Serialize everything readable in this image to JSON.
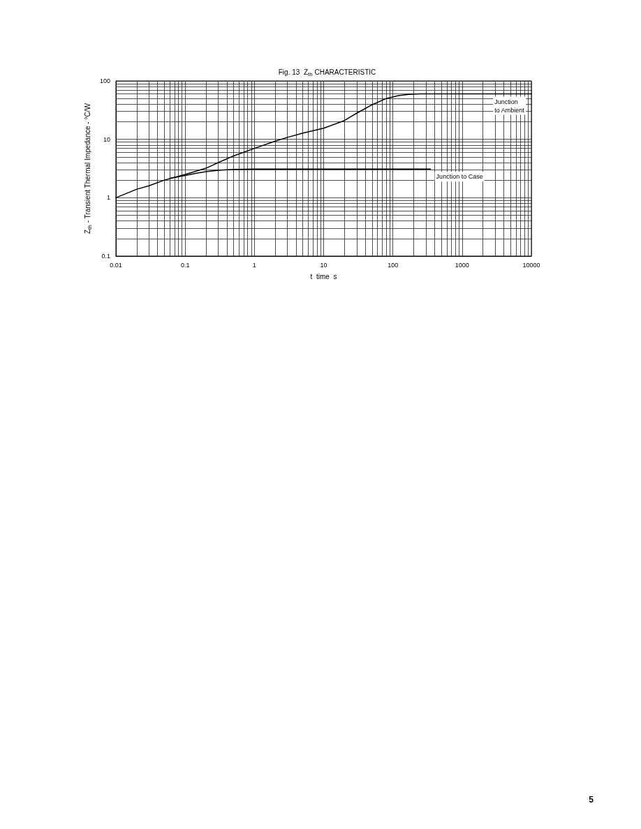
{
  "chart_data": {
    "type": "line",
    "title": "Fig. 13  Z$_{th}$ CHARACTERISTIC",
    "xlabel": "t  time  s",
    "ylabel": "Z$_{th}$ - Transient Thermal Impedance - °C/W",
    "log": "xy",
    "grid": true,
    "marker": "none",
    "xlim": [
      0.01,
      10000
    ],
    "ylim": [
      0.1,
      100
    ],
    "xticks": [
      0.01,
      {
        "value": 0.02,
        "label": null
      },
      {
        "value": 0.03,
        "label": null
      },
      {
        "value": 0.04,
        "label": null
      },
      {
        "value": 0.05,
        "label": null
      },
      {
        "value": 0.06,
        "label": null
      },
      {
        "value": 0.07,
        "label": null
      },
      {
        "value": 0.08,
        "label": null
      },
      {
        "value": 0.09,
        "label": null
      },
      0.1,
      {
        "value": 0.2,
        "label": null
      },
      {
        "value": 0.3,
        "label": null
      },
      {
        "value": 0.4,
        "label": null
      },
      {
        "value": 0.5,
        "label": null
      },
      {
        "value": 0.6,
        "label": null
      },
      {
        "value": 0.7,
        "label": null
      },
      {
        "value": 0.8,
        "label": null
      },
      {
        "value": 0.9,
        "label": null
      },
      1,
      {
        "value": 2,
        "label": null
      },
      {
        "value": 3,
        "label": null
      },
      {
        "value": 4,
        "label": null
      },
      {
        "value": 5,
        "label": null
      },
      {
        "value": 6,
        "label": null
      },
      {
        "value": 7,
        "label": null
      },
      {
        "value": 8,
        "label": null
      },
      {
        "value": 9,
        "label": null
      },
      10,
      {
        "value": 20,
        "label": null
      },
      {
        "value": 30,
        "label": null
      },
      {
        "value": 40,
        "label": null
      },
      {
        "value": 50,
        "label": null
      },
      {
        "value": 60,
        "label": null
      },
      {
        "value": 70,
        "label": null
      },
      {
        "value": 80,
        "label": null
      },
      {
        "value": 90,
        "label": null
      },
      100,
      {
        "value": 200,
        "label": null
      },
      {
        "value": 300,
        "label": null
      },
      {
        "value": 400,
        "label": null
      },
      {
        "value": 500,
        "label": null
      },
      {
        "value": 600,
        "label": null
      },
      {
        "value": 700,
        "label": null
      },
      {
        "value": 800,
        "label": null
      },
      {
        "value": 900,
        "label": null
      },
      1000,
      {
        "value": 2000,
        "label": null
      },
      {
        "value": 3000,
        "label": null
      },
      {
        "value": 4000,
        "label": null
      },
      {
        "value": 5000,
        "label": null
      },
      {
        "value": 6000,
        "label": null
      },
      {
        "value": 7000,
        "label": null
      },
      {
        "value": 8000,
        "label": null
      },
      {
        "value": 9000,
        "label": null
      },
      10000
    ],
    "yticks": [
      0.1,
      {
        "value": 0.2,
        "label": null
      },
      {
        "value": 0.3,
        "label": null
      },
      {
        "value": 0.4,
        "label": null
      },
      {
        "value": 0.5,
        "label": null
      },
      {
        "value": 0.6,
        "label": null
      },
      {
        "value": 0.7,
        "label": null
      },
      {
        "value": 0.8,
        "label": null
      },
      {
        "value": 0.9,
        "label": null
      },
      1,
      {
        "value": 2,
        "label": null
      },
      {
        "value": 3,
        "label": null
      },
      {
        "value": 4,
        "label": null
      },
      {
        "value": 5,
        "label": null
      },
      {
        "value": 6,
        "label": null
      },
      {
        "value": 7,
        "label": null
      },
      {
        "value": 8,
        "label": null
      },
      {
        "value": 9,
        "label": null
      },
      10,
      {
        "value": 20,
        "label": null
      },
      {
        "value": 30,
        "label": null
      },
      {
        "value": 40,
        "label": null
      },
      {
        "value": 50,
        "label": null
      },
      {
        "value": 60,
        "label": null
      },
      {
        "value": 70,
        "label": null
      },
      {
        "value": 80,
        "label": null
      },
      {
        "value": 90,
        "label": null
      },
      100
    ],
    "series": [
      {
        "name": "Junction to Ambient",
        "color": "#000000",
        "x": [
          0.01,
          0.02,
          0.03,
          0.05,
          0.1,
          0.2,
          0.3,
          0.5,
          1,
          2,
          3,
          5,
          10,
          20,
          30,
          50,
          80,
          120,
          170,
          250,
          10000
        ],
        "values": [
          1.0,
          1.4,
          1.6,
          2.0,
          2.5,
          3.2,
          4.0,
          5.2,
          7.0,
          9.3,
          10.8,
          12.8,
          15.5,
          21,
          28,
          39,
          50,
          56,
          59,
          60,
          60
        ]
      },
      {
        "name": "Junction to Case",
        "color": "#000000",
        "x": [
          0.06,
          0.1,
          0.15,
          0.2,
          0.3,
          0.5,
          1,
          350
        ],
        "values": [
          2.15,
          2.4,
          2.65,
          2.8,
          2.95,
          3.05,
          3.1,
          3.1
        ]
      }
    ],
    "annotations": [
      "5"
    ]
  }
}
